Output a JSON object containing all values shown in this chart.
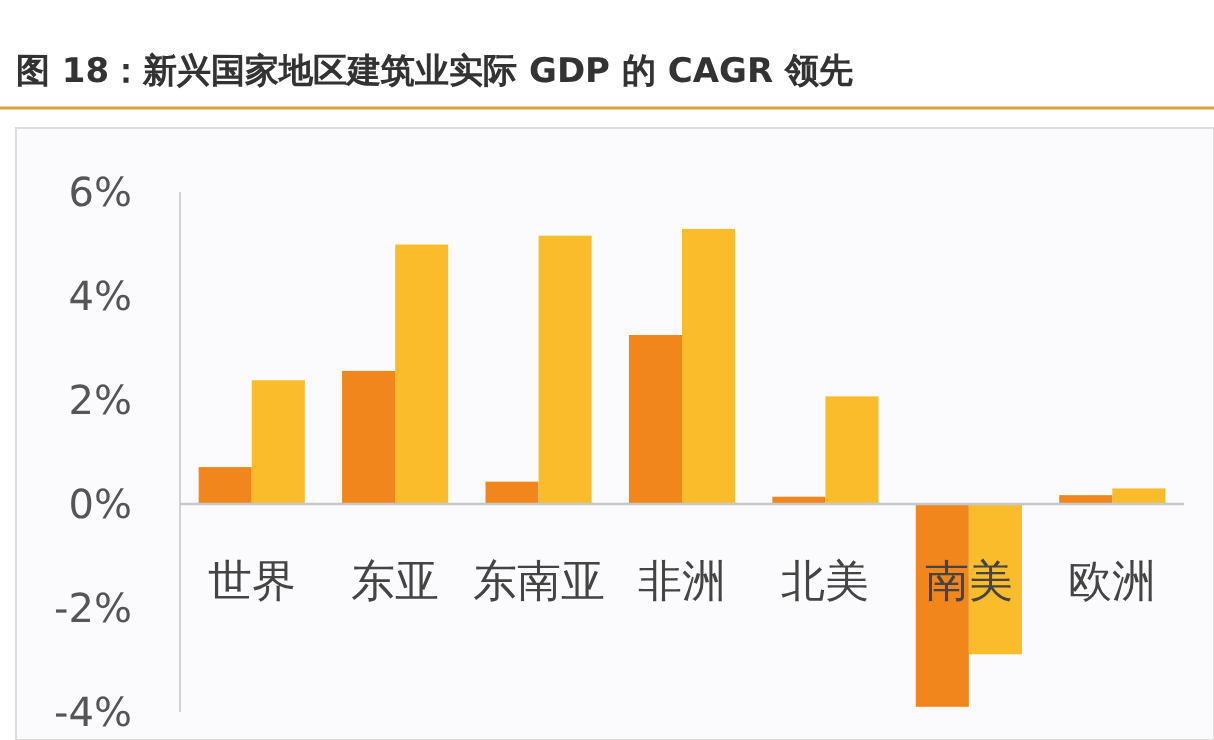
{
  "chart_data": {
    "type": "bar",
    "title": "图 18：新兴国家地区建筑业实际 GDP 的 CAGR 领先",
    "categories": [
      "世界",
      "东亚",
      "东南亚",
      "非洲",
      "北美",
      "南美",
      "欧洲"
    ],
    "series": [
      {
        "color": "#f0861c",
        "values": [
          0.71,
          2.56,
          0.43,
          3.25,
          0.14,
          -3.9,
          0.17
        ]
      },
      {
        "color": "#fbbc2b",
        "values": [
          2.38,
          4.99,
          5.16,
          5.29,
          2.07,
          -2.89,
          0.3
        ]
      }
    ],
    "ylim": [
      -4,
      6
    ],
    "yticks": [
      {
        "value": -4,
        "label": "-4%"
      },
      {
        "value": -2,
        "label": "-2%"
      },
      {
        "value": 0,
        "label": "0%"
      },
      {
        "value": 2,
        "label": "2%"
      },
      {
        "value": 4,
        "label": "4%"
      },
      {
        "value": 6,
        "label": "6%"
      }
    ],
    "grid": false
  }
}
